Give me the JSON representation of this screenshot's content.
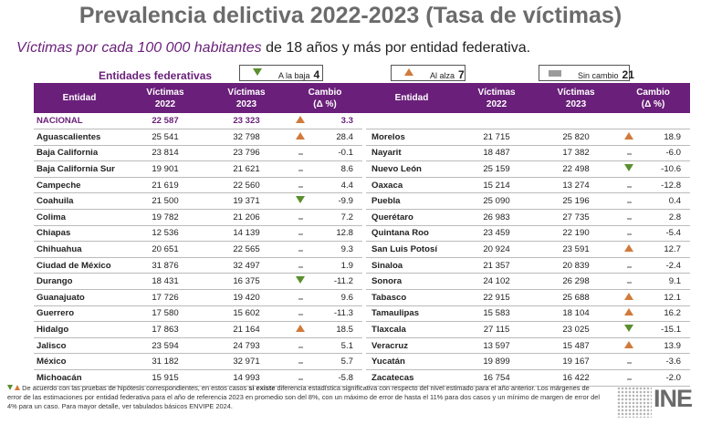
{
  "title": "Prevalencia delictiva 2022-2023 (Tasa de víctimas)",
  "subtitle": {
    "emph": "Víctimas por cada 100 000 habitantes",
    "rest": " de 18 años y más por entidad federativa."
  },
  "legend": {
    "label": "Entidades federativas",
    "down": {
      "text": "A la baja",
      "count": "4"
    },
    "up": {
      "text": "Al alza",
      "count": "7"
    },
    "same": {
      "text": "Sin cambio",
      "count": "21"
    }
  },
  "headers": {
    "entidad": "Entidad",
    "v2022": [
      "Víctimas",
      "2022"
    ],
    "v2023": [
      "Víctimas",
      "2023"
    ],
    "cambio": [
      "Cambio",
      "(Δ %)"
    ]
  },
  "left_rows": [
    {
      "entity": "NACIONAL",
      "v2022": "22 587",
      "v2023": "23 323",
      "trend": "up",
      "change": "3.3",
      "national": true
    },
    {
      "entity": "Aguascalientes",
      "v2022": "25 541",
      "v2023": "32 798",
      "trend": "up",
      "change": "28.4"
    },
    {
      "entity": "Baja California",
      "v2022": "23 814",
      "v2023": "23 796",
      "trend": "same",
      "change": "-0.1"
    },
    {
      "entity": "Baja California Sur",
      "v2022": "19 901",
      "v2023": "21 621",
      "trend": "same",
      "change": "8.6"
    },
    {
      "entity": "Campeche",
      "v2022": "21 619",
      "v2023": "22 560",
      "trend": "same",
      "change": "4.4"
    },
    {
      "entity": "Coahuila",
      "v2022": "21 500",
      "v2023": "19 371",
      "trend": "down",
      "change": "-9.9"
    },
    {
      "entity": "Colima",
      "v2022": "19 782",
      "v2023": "21 206",
      "trend": "same",
      "change": "7.2"
    },
    {
      "entity": "Chiapas",
      "v2022": "12 536",
      "v2023": "14 139",
      "trend": "same",
      "change": "12.8"
    },
    {
      "entity": "Chihuahua",
      "v2022": "20 651",
      "v2023": "22 565",
      "trend": "same",
      "change": "9.3"
    },
    {
      "entity": "Ciudad de México",
      "v2022": "31 876",
      "v2023": "32 497",
      "trend": "same",
      "change": "1.9"
    },
    {
      "entity": "Durango",
      "v2022": "18 431",
      "v2023": "16 375",
      "trend": "down",
      "change": "-11.2"
    },
    {
      "entity": "Guanajuato",
      "v2022": "17 726",
      "v2023": "19 420",
      "trend": "same",
      "change": "9.6"
    },
    {
      "entity": "Guerrero",
      "v2022": "17 580",
      "v2023": "15 602",
      "trend": "same",
      "change": "-11.3"
    },
    {
      "entity": "Hidalgo",
      "v2022": "17 863",
      "v2023": "21 164",
      "trend": "up",
      "change": "18.5"
    },
    {
      "entity": "Jalisco",
      "v2022": "23 594",
      "v2023": "24 793",
      "trend": "same",
      "change": "5.1"
    },
    {
      "entity": "México",
      "v2022": "31 182",
      "v2023": "32 971",
      "trend": "same",
      "change": "5.7"
    },
    {
      "entity": "Michoacán",
      "v2022": "15 915",
      "v2023": "14 993",
      "trend": "same",
      "change": "-5.8"
    }
  ],
  "right_rows": [
    {
      "entity": "",
      "v2022": "",
      "v2023": "",
      "trend": "",
      "change": ""
    },
    {
      "entity": "Morelos",
      "v2022": "21 715",
      "v2023": "25 820",
      "trend": "up",
      "change": "18.9"
    },
    {
      "entity": "Nayarit",
      "v2022": "18 487",
      "v2023": "17 382",
      "trend": "same",
      "change": "-6.0"
    },
    {
      "entity": "Nuevo León",
      "v2022": "25 159",
      "v2023": "22 498",
      "trend": "down",
      "change": "-10.6"
    },
    {
      "entity": "Oaxaca",
      "v2022": "15 214",
      "v2023": "13 274",
      "trend": "same",
      "change": "-12.8"
    },
    {
      "entity": "Puebla",
      "v2022": "25 090",
      "v2023": "25 196",
      "trend": "same",
      "change": "0.4"
    },
    {
      "entity": "Querétaro",
      "v2022": "26 983",
      "v2023": "27 735",
      "trend": "same",
      "change": "2.8"
    },
    {
      "entity": "Quintana Roo",
      "v2022": "23 459",
      "v2023": "22 190",
      "trend": "same",
      "change": "-5.4"
    },
    {
      "entity": "San Luis Potosí",
      "v2022": "20 924",
      "v2023": "23 591",
      "trend": "up",
      "change": "12.7"
    },
    {
      "entity": "Sinaloa",
      "v2022": "21 357",
      "v2023": "20 839",
      "trend": "same",
      "change": "-2.4"
    },
    {
      "entity": "Sonora",
      "v2022": "24 102",
      "v2023": "26 298",
      "trend": "same",
      "change": "9.1"
    },
    {
      "entity": "Tabasco",
      "v2022": "22 915",
      "v2023": "25 688",
      "trend": "up",
      "change": "12.1"
    },
    {
      "entity": "Tamaulipas",
      "v2022": "15 583",
      "v2023": "18 104",
      "trend": "up",
      "change": "16.2"
    },
    {
      "entity": "Tlaxcala",
      "v2022": "27 115",
      "v2023": "23 025",
      "trend": "down",
      "change": "-15.1"
    },
    {
      "entity": "Veracruz",
      "v2022": "13 597",
      "v2023": "15 487",
      "trend": "up",
      "change": "13.9"
    },
    {
      "entity": "Yucatán",
      "v2022": "19 899",
      "v2023": "19 167",
      "trend": "same",
      "change": "-3.6"
    },
    {
      "entity": "Zacatecas",
      "v2022": "16 754",
      "v2023": "16 422",
      "trend": "same",
      "change": "-2.0"
    }
  ],
  "footnote": {
    "part1": " De acuerdo con las pruebas de hipótesis correspondientes, en estos casos ",
    "bold": "si existe",
    "part2": " diferencia estadística significativa con respecto del nivel estimado para el año anterior. Los márgenes de error de las estimaciones por entidad federativa para el año de referencia 2023 en promedio son del 8%, con un máximo de error de hasta el 11% para dos casos y un mínimo de margen de error del 4% para un caso. Para mayor detalle, ver tabulados básicos ENVIPE 2024."
  },
  "logo": "INE",
  "colors": {
    "purple": "#6a1f7a",
    "down": "#5b8f2e",
    "up": "#d17a3a",
    "same": "#9b9b9b"
  }
}
